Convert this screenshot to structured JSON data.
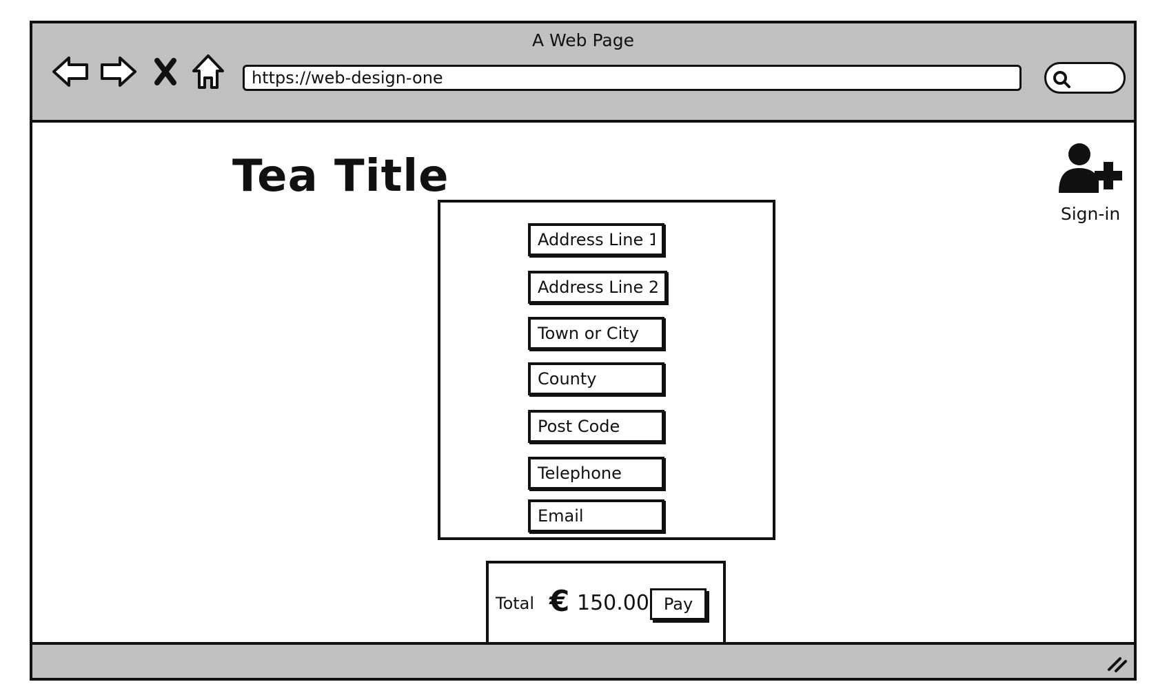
{
  "window": {
    "title": "A Web Page"
  },
  "toolbar": {
    "url": "https://web-design-one",
    "icons": [
      "back-arrow-icon",
      "forward-arrow-icon",
      "close-icon",
      "home-icon",
      "search-icon"
    ]
  },
  "page": {
    "title": "Tea Title"
  },
  "account": {
    "icon": "add-user-icon",
    "label": "Sign-in"
  },
  "form": {
    "fields": [
      "Address Line 1",
      "Address Line 2",
      "Town or City",
      "County",
      "Post Code",
      "Telephone",
      "Email"
    ]
  },
  "checkout": {
    "total_label": "Total",
    "currency_symbol": "€",
    "amount": "150.00",
    "pay_label": "Pay"
  },
  "colors": {
    "chrome": "#c0c0c0",
    "ink": "#111111",
    "background": "#ffffff"
  }
}
